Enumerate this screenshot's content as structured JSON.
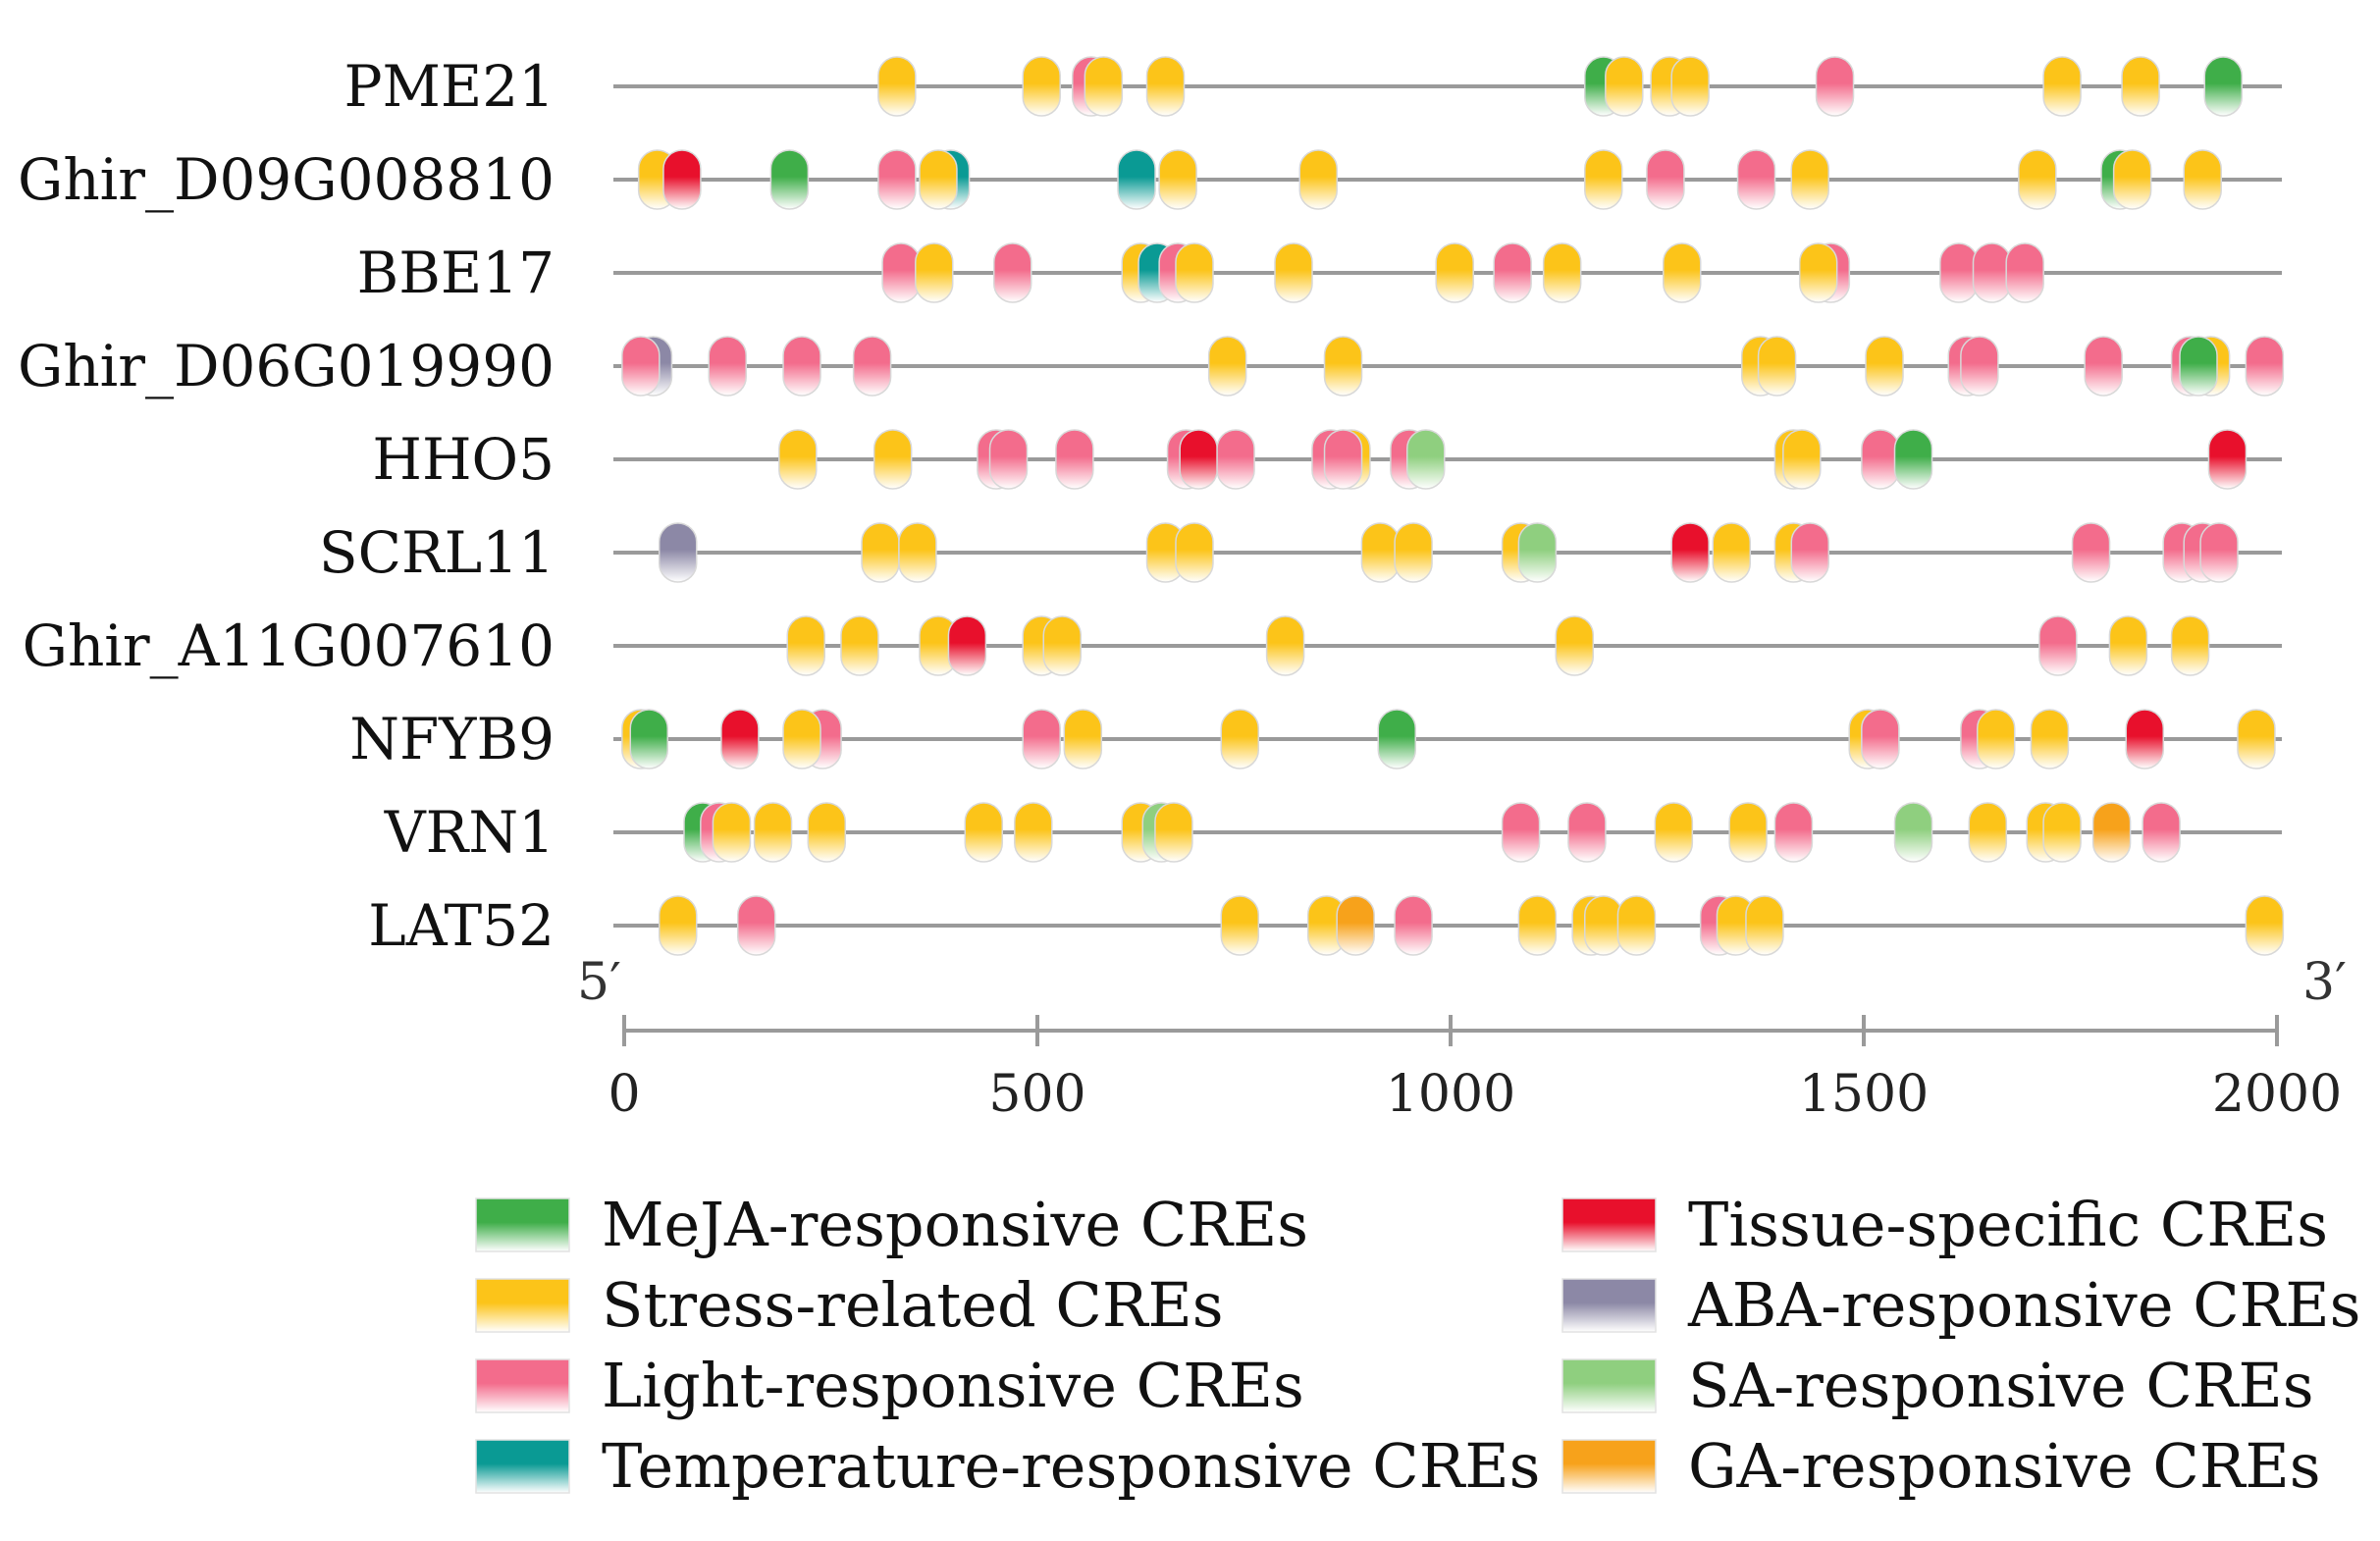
{
  "chart_data": {
    "type": "promoter-cis-element-map",
    "x_range": [
      0,
      2000
    ],
    "x_ticks": [
      0,
      500,
      1000,
      1500,
      2000
    ],
    "start_label": "5′",
    "end_label": "3′",
    "categories": [
      {
        "key": "meja",
        "label": "MeJA-responsive CREs",
        "color": "#3fae49"
      },
      {
        "key": "stress",
        "label": "Stress-related CREs",
        "color": "#fcc419"
      },
      {
        "key": "light",
        "label": "Light-responsive CREs",
        "color": "#f36c8c"
      },
      {
        "key": "temp",
        "label": "Temperature-responsive CREs",
        "color": "#0a9a94"
      },
      {
        "key": "tissue",
        "label": "Tissue-specific CREs",
        "color": "#e8102c"
      },
      {
        "key": "aba",
        "label": "ABA-responsive CREs",
        "color": "#8c88a6"
      },
      {
        "key": "sa",
        "label": "SA-responsive CREs",
        "color": "#8fcf7f"
      },
      {
        "key": "ga",
        "label": "GA-responsive CREs",
        "color": "#f7a21b"
      }
    ],
    "genes": [
      {
        "name": "PME21",
        "elements": [
          [
            "stress",
            330
          ],
          [
            "stress",
            505
          ],
          [
            "light",
            565
          ],
          [
            "stress",
            580
          ],
          [
            "stress",
            655
          ],
          [
            "meja",
            1185
          ],
          [
            "stress",
            1210
          ],
          [
            "stress",
            1265
          ],
          [
            "stress",
            1290
          ],
          [
            "light",
            1465
          ],
          [
            "stress",
            1740
          ],
          [
            "stress",
            1835
          ],
          [
            "meja",
            1935
          ]
        ]
      },
      {
        "name": "Ghir_D09G008810",
        "elements": [
          [
            "stress",
            40
          ],
          [
            "tissue",
            70
          ],
          [
            "meja",
            200
          ],
          [
            "light",
            330
          ],
          [
            "temp",
            395
          ],
          [
            "stress",
            380
          ],
          [
            "temp",
            620
          ],
          [
            "stress",
            670
          ],
          [
            "stress",
            840
          ],
          [
            "stress",
            1185
          ],
          [
            "light",
            1260
          ],
          [
            "light",
            1370
          ],
          [
            "stress",
            1435
          ],
          [
            "stress",
            1710
          ],
          [
            "meja",
            1810
          ],
          [
            "stress",
            1825
          ],
          [
            "stress",
            1910
          ]
        ]
      },
      {
        "name": "BBE17",
        "elements": [
          [
            "light",
            335
          ],
          [
            "stress",
            375
          ],
          [
            "light",
            470
          ],
          [
            "stress",
            625
          ],
          [
            "temp",
            645
          ],
          [
            "light",
            670
          ],
          [
            "stress",
            690
          ],
          [
            "stress",
            810
          ],
          [
            "stress",
            1005
          ],
          [
            "light",
            1075
          ],
          [
            "stress",
            1135
          ],
          [
            "stress",
            1280
          ],
          [
            "light",
            1460
          ],
          [
            "stress",
            1445
          ],
          [
            "light",
            1615
          ],
          [
            "light",
            1655
          ],
          [
            "light",
            1695
          ]
        ]
      },
      {
        "name": "Ghir_D06G019990",
        "elements": [
          [
            "aba",
            35
          ],
          [
            "light",
            20
          ],
          [
            "light",
            125
          ],
          [
            "light",
            215
          ],
          [
            "light",
            300
          ],
          [
            "stress",
            730
          ],
          [
            "stress",
            870
          ],
          [
            "stress",
            1375
          ],
          [
            "stress",
            1395
          ],
          [
            "stress",
            1525
          ],
          [
            "light",
            1625
          ],
          [
            "light",
            1640
          ],
          [
            "light",
            1790
          ],
          [
            "stress",
            1920
          ],
          [
            "light",
            1895
          ],
          [
            "meja",
            1905
          ],
          [
            "light",
            1985
          ]
        ]
      },
      {
        "name": "HHO5",
        "elements": [
          [
            "stress",
            210
          ],
          [
            "stress",
            325
          ],
          [
            "light",
            450
          ],
          [
            "light",
            465
          ],
          [
            "light",
            545
          ],
          [
            "light",
            680
          ],
          [
            "tissue",
            695
          ],
          [
            "light",
            740
          ],
          [
            "stress",
            880
          ],
          [
            "light",
            855
          ],
          [
            "light",
            870
          ],
          [
            "light",
            950
          ],
          [
            "sa",
            970
          ],
          [
            "stress",
            1415
          ],
          [
            "stress",
            1425
          ],
          [
            "light",
            1520
          ],
          [
            "meja",
            1560
          ],
          [
            "tissue",
            1940
          ]
        ]
      },
      {
        "name": "SCRL11",
        "elements": [
          [
            "aba",
            65
          ],
          [
            "stress",
            310
          ],
          [
            "stress",
            355
          ],
          [
            "stress",
            655
          ],
          [
            "stress",
            690
          ],
          [
            "stress",
            915
          ],
          [
            "stress",
            955
          ],
          [
            "stress",
            1085
          ],
          [
            "sa",
            1105
          ],
          [
            "tissue",
            1290
          ],
          [
            "stress",
            1340
          ],
          [
            "stress",
            1415
          ],
          [
            "light",
            1435
          ],
          [
            "light",
            1775
          ],
          [
            "light",
            1885
          ],
          [
            "light",
            1910
          ],
          [
            "light",
            1930
          ]
        ]
      },
      {
        "name": "Ghir_A11G007610",
        "elements": [
          [
            "stress",
            220
          ],
          [
            "stress",
            285
          ],
          [
            "stress",
            380
          ],
          [
            "tissue",
            415
          ],
          [
            "stress",
            505
          ],
          [
            "stress",
            530
          ],
          [
            "stress",
            800
          ],
          [
            "stress",
            1150
          ],
          [
            "light",
            1735
          ],
          [
            "stress",
            1820
          ],
          [
            "stress",
            1895
          ]
        ]
      },
      {
        "name": "NFYB9",
        "elements": [
          [
            "stress",
            20
          ],
          [
            "meja",
            30
          ],
          [
            "tissue",
            140
          ],
          [
            "light",
            240
          ],
          [
            "stress",
            215
          ],
          [
            "light",
            505
          ],
          [
            "stress",
            555
          ],
          [
            "stress",
            745
          ],
          [
            "meja",
            935
          ],
          [
            "stress",
            1505
          ],
          [
            "stress",
            1520
          ],
          [
            "light",
            1520
          ],
          [
            "light",
            1640
          ],
          [
            "stress",
            1660
          ],
          [
            "stress",
            1725
          ],
          [
            "tissue",
            1840
          ],
          [
            "stress",
            1975
          ]
        ]
      },
      {
        "name": "VRN1",
        "elements": [
          [
            "meja",
            95
          ],
          [
            "light",
            115
          ],
          [
            "stress",
            130
          ],
          [
            "stress",
            180
          ],
          [
            "stress",
            245
          ],
          [
            "stress",
            435
          ],
          [
            "stress",
            495
          ],
          [
            "stress",
            625
          ],
          [
            "sa",
            650
          ],
          [
            "stress",
            665
          ],
          [
            "light",
            1085
          ],
          [
            "light",
            1165
          ],
          [
            "stress",
            1270
          ],
          [
            "stress",
            1360
          ],
          [
            "light",
            1415
          ],
          [
            "sa",
            1560
          ],
          [
            "stress",
            1650
          ],
          [
            "stress",
            1720
          ],
          [
            "stress",
            1740
          ],
          [
            "ga",
            1800
          ],
          [
            "light",
            1860
          ]
        ]
      },
      {
        "name": "LAT52",
        "elements": [
          [
            "stress",
            65
          ],
          [
            "light",
            160
          ],
          [
            "stress",
            745
          ],
          [
            "stress",
            850
          ],
          [
            "ga",
            885
          ],
          [
            "light",
            955
          ],
          [
            "stress",
            1105
          ],
          [
            "stress",
            1170
          ],
          [
            "stress",
            1185
          ],
          [
            "stress",
            1225
          ],
          [
            "light",
            1325
          ],
          [
            "stress",
            1345
          ],
          [
            "stress",
            1380
          ],
          [
            "stress",
            1985
          ]
        ]
      }
    ]
  }
}
